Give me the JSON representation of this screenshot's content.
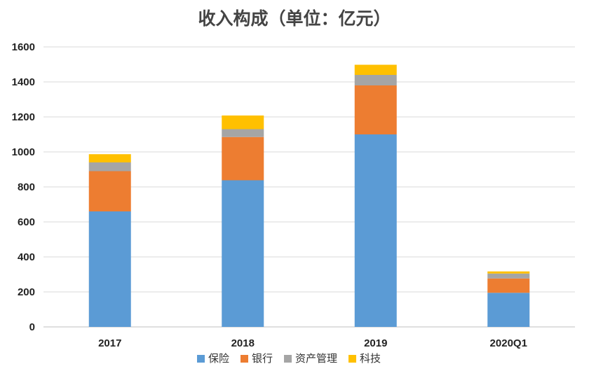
{
  "chart_data": {
    "type": "bar",
    "stacked": true,
    "title": "收入构成（单位：亿元）",
    "xlabel": "",
    "ylabel": "",
    "categories": [
      "2017",
      "2018",
      "2019",
      "2020Q1"
    ],
    "series": [
      {
        "name": "保险",
        "color": "#5B9BD5",
        "values": [
          660,
          838,
          1100,
          195
        ]
      },
      {
        "name": "银行",
        "color": "#ED7D31",
        "values": [
          230,
          247,
          280,
          82
        ]
      },
      {
        "name": "资产管理",
        "color": "#A5A5A5",
        "values": [
          50,
          45,
          60,
          28
        ]
      },
      {
        "name": "科技",
        "color": "#FFC000",
        "values": [
          47,
          78,
          58,
          12
        ]
      }
    ],
    "ylim": [
      0,
      1600
    ],
    "yticks": [
      "0",
      "200",
      "400",
      "600",
      "800",
      "1000",
      "1200",
      "1400",
      "1600"
    ],
    "grid": true,
    "legend": "bottom"
  }
}
